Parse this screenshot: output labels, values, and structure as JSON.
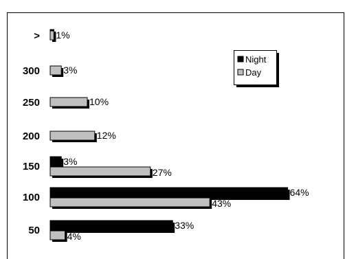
{
  "chart_data": {
    "type": "bar",
    "orientation": "horizontal",
    "categories": [
      ">",
      "300",
      "250",
      "200",
      "150",
      "100",
      "50"
    ],
    "series": [
      {
        "name": "Night",
        "color": "#000000",
        "values": [
          1,
          0,
          0,
          0,
          3,
          64,
          33
        ]
      },
      {
        "name": "Day",
        "color": "#c0c0c0",
        "values": [
          1,
          3,
          10,
          12,
          27,
          43,
          4
        ]
      }
    ],
    "data_labels": [
      {
        "text": "1%"
      },
      {
        "text": "3%"
      },
      {
        "text": "10%"
      },
      {
        "text": "12%"
      },
      {
        "text": "3%"
      },
      {
        "text": "27%"
      },
      {
        "text": "64%"
      },
      {
        "text": "43%"
      },
      {
        "text": "33%"
      },
      {
        "text": "4%"
      }
    ],
    "xlim": [
      0,
      70
    ],
    "grid": false,
    "legend_position": "top-right",
    "title": "",
    "xlabel": "",
    "ylabel": ""
  }
}
